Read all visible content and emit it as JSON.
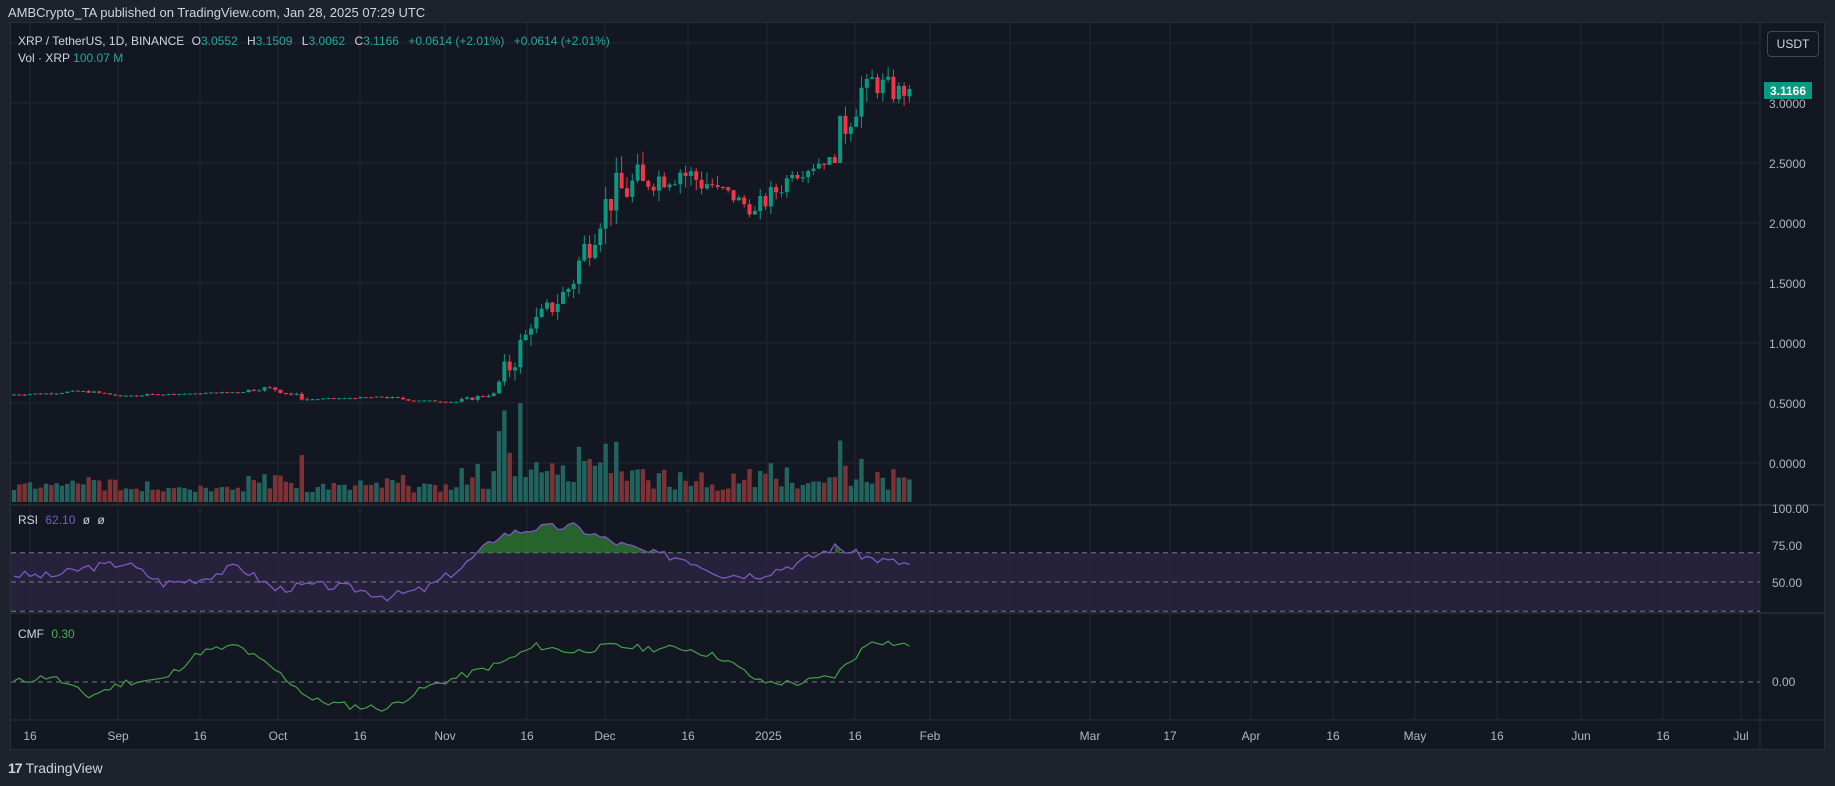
{
  "header": {
    "published_line": "AMBCrypto_TA published on TradingView.com, Jan 28, 2025 07:29 UTC"
  },
  "legend": {
    "symbol": "XRP / TetherUS, 1D, BINANCE",
    "o_label": "O",
    "o_value": "3.0552",
    "h_label": "H",
    "h_value": "3.1509",
    "l_label": "L",
    "l_value": "3.0062",
    "c_label": "C",
    "c_value": "3.1166",
    "change": "+0.0614 (+2.01%)",
    "change2": "+0.0614 (+2.01%)",
    "vol_label": "Vol · XRP",
    "vol_value": "100.07 M"
  },
  "price_axis": {
    "currency_button": "USDT",
    "last_price": "3.1166",
    "ticks": [
      "3.0000",
      "2.5000",
      "2.0000",
      "1.5000",
      "1.0000",
      "0.5000",
      "0.0000"
    ]
  },
  "rsi": {
    "label": "RSI",
    "value": "62.10",
    "extra1": "ø",
    "extra2": "ø",
    "ticks": [
      "100.00",
      "75.00",
      "50.00"
    ]
  },
  "cmf": {
    "label": "CMF",
    "value": "0.30",
    "ticks": [
      "0.00"
    ]
  },
  "time_axis": {
    "ticks": [
      "16",
      "Sep",
      "16",
      "Oct",
      "16",
      "Nov",
      "16",
      "Dec",
      "16",
      "2025",
      "16",
      "Feb",
      "Mar",
      "17",
      "Apr",
      "16",
      "May",
      "16",
      "Jun",
      "16",
      "Jul"
    ]
  },
  "footer": {
    "brand": "TradingView",
    "logo": "17"
  },
  "colors": {
    "up": "#089981",
    "down": "#f23645",
    "vol_up": "#22635e",
    "vol_down": "#7e3236",
    "rsi_line": "#7e57c2",
    "rsi_band": "#2a2440",
    "rsi_overbought_fill": "#2e7d32",
    "cmf_line": "#43a047",
    "grid": "#232733",
    "bg": "#131722"
  },
  "chart_data": {
    "type": "candlestick",
    "title": "XRP / TetherUS, 1D, BINANCE",
    "xlabel": "",
    "ylabel": "USDT",
    "ylim": [
      -0.25,
      3.5
    ],
    "x_range": [
      "2024-08-13",
      "2025-07-05"
    ],
    "grid": true,
    "last_close": 3.1166,
    "ohlc_weekly_approx": [
      {
        "date": "2024-08-13",
        "o": 0.57,
        "h": 0.6,
        "l": 0.56,
        "c": 0.58
      },
      {
        "date": "2024-08-20",
        "o": 0.58,
        "h": 0.62,
        "l": 0.57,
        "c": 0.6
      },
      {
        "date": "2024-08-27",
        "o": 0.6,
        "h": 0.61,
        "l": 0.55,
        "c": 0.56
      },
      {
        "date": "2024-09-03",
        "o": 0.56,
        "h": 0.58,
        "l": 0.53,
        "c": 0.57
      },
      {
        "date": "2024-09-10",
        "o": 0.57,
        "h": 0.59,
        "l": 0.56,
        "c": 0.58
      },
      {
        "date": "2024-09-17",
        "o": 0.58,
        "h": 0.6,
        "l": 0.57,
        "c": 0.59
      },
      {
        "date": "2024-09-24",
        "o": 0.59,
        "h": 0.66,
        "l": 0.58,
        "c": 0.63
      },
      {
        "date": "2024-10-01",
        "o": 0.63,
        "h": 0.64,
        "l": 0.52,
        "c": 0.53
      },
      {
        "date": "2024-10-08",
        "o": 0.53,
        "h": 0.55,
        "l": 0.52,
        "c": 0.54
      },
      {
        "date": "2024-10-15",
        "o": 0.54,
        "h": 0.56,
        "l": 0.53,
        "c": 0.55
      },
      {
        "date": "2024-10-22",
        "o": 0.55,
        "h": 0.56,
        "l": 0.5,
        "c": 0.52
      },
      {
        "date": "2024-10-29",
        "o": 0.52,
        "h": 0.53,
        "l": 0.5,
        "c": 0.51
      },
      {
        "date": "2024-11-05",
        "o": 0.51,
        "h": 0.6,
        "l": 0.5,
        "c": 0.58
      },
      {
        "date": "2024-11-12",
        "o": 0.58,
        "h": 1.27,
        "l": 0.58,
        "c": 1.12
      },
      {
        "date": "2024-11-19",
        "o": 1.12,
        "h": 1.63,
        "l": 1.07,
        "c": 1.45
      },
      {
        "date": "2024-11-26",
        "o": 1.45,
        "h": 2.3,
        "l": 1.33,
        "c": 2.2
      },
      {
        "date": "2024-12-03",
        "o": 2.2,
        "h": 2.91,
        "l": 1.9,
        "c": 2.35
      },
      {
        "date": "2024-12-10",
        "o": 2.35,
        "h": 2.6,
        "l": 1.96,
        "c": 2.42
      },
      {
        "date": "2024-12-17",
        "o": 2.42,
        "h": 2.7,
        "l": 1.96,
        "c": 2.3
      },
      {
        "date": "2024-12-24",
        "o": 2.3,
        "h": 2.36,
        "l": 2.02,
        "c": 2.1
      },
      {
        "date": "2024-12-31",
        "o": 2.1,
        "h": 2.5,
        "l": 2.0,
        "c": 2.4
      },
      {
        "date": "2025-01-07",
        "o": 2.4,
        "h": 2.55,
        "l": 2.2,
        "c": 2.55
      },
      {
        "date": "2025-01-14",
        "o": 2.55,
        "h": 3.4,
        "l": 2.5,
        "c": 3.2
      },
      {
        "date": "2025-01-21",
        "o": 3.2,
        "h": 3.3,
        "l": 2.7,
        "c": 3.06
      },
      {
        "date": "2025-01-28",
        "o": 3.0552,
        "h": 3.1509,
        "l": 3.0062,
        "c": 3.1166
      }
    ],
    "volume_axis_note": "volume shown as bars at bottom of main pane, last 100.07 M",
    "indicators": [
      {
        "name": "RSI",
        "last": 62.1,
        "ylim": [
          0,
          100
        ],
        "bands": [
          30,
          50,
          70
        ],
        "weekly_approx": [
          55,
          54,
          60,
          63,
          49,
          52,
          61,
          45,
          48,
          46,
          40,
          45,
          60,
          82,
          87,
          88,
          78,
          70,
          66,
          55,
          55,
          63,
          74,
          66,
          62.1
        ]
      },
      {
        "name": "CMF",
        "last": 0.3,
        "ylim": [
          -0.3,
          0.45
        ],
        "weekly_approx": [
          0.0,
          0.05,
          -0.12,
          0.0,
          0.02,
          0.25,
          0.3,
          0.1,
          -0.15,
          -0.2,
          -0.22,
          -0.05,
          0.05,
          0.15,
          0.3,
          0.25,
          0.3,
          0.28,
          0.28,
          0.2,
          0.0,
          -0.01,
          0.05,
          0.35,
          0.3
        ]
      }
    ]
  }
}
